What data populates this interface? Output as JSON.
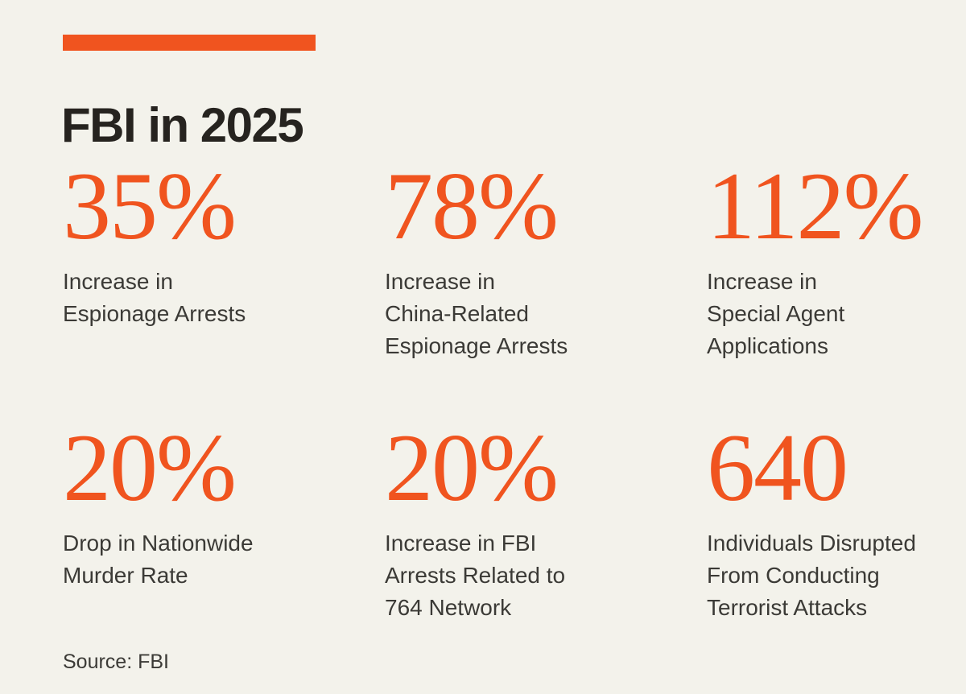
{
  "theme": {
    "background": "#F3F2EB",
    "accent": "#F0541F",
    "title_color": "#26231F",
    "label_color": "#3B3A36"
  },
  "header": {
    "title": "FBI in 2025"
  },
  "chart_data": {
    "type": "table",
    "title": "FBI in 2025",
    "source": "Source: FBI",
    "layout": "3x2 stat grid",
    "stats": [
      {
        "value": "35%",
        "metric": "Increase in Espionage Arrests"
      },
      {
        "value": "78%",
        "metric": "Increase in China-Related Espionage Arrests"
      },
      {
        "value": "112%",
        "metric": "Increase in Special Agent Applications"
      },
      {
        "value": "20%",
        "metric": "Drop in Nationwide Murder Rate"
      },
      {
        "value": "20%",
        "metric": "Increase in FBI Arrests Related to 764 Network"
      },
      {
        "value": "640",
        "metric": "Individuals Disrupted From Conducting Terrorist Attacks"
      }
    ]
  },
  "stats": [
    {
      "value": "35%",
      "label": [
        "Increase in",
        "Espionage Arrests"
      ]
    },
    {
      "value": "78%",
      "label": [
        "Increase in",
        "China-Related",
        "Espionage Arrests"
      ]
    },
    {
      "value": "112%",
      "label": [
        "Increase in",
        "Special Agent",
        "Applications"
      ]
    },
    {
      "value": "20%",
      "label": [
        "Drop in Nationwide",
        "Murder Rate"
      ]
    },
    {
      "value": "20%",
      "label": [
        "Increase in FBI",
        "Arrests Related to",
        "764 Network"
      ]
    },
    {
      "value": "640",
      "label": [
        "Individuals Disrupted",
        "From Conducting",
        "Terrorist Attacks"
      ]
    }
  ],
  "footer": {
    "source": "Source: FBI"
  }
}
